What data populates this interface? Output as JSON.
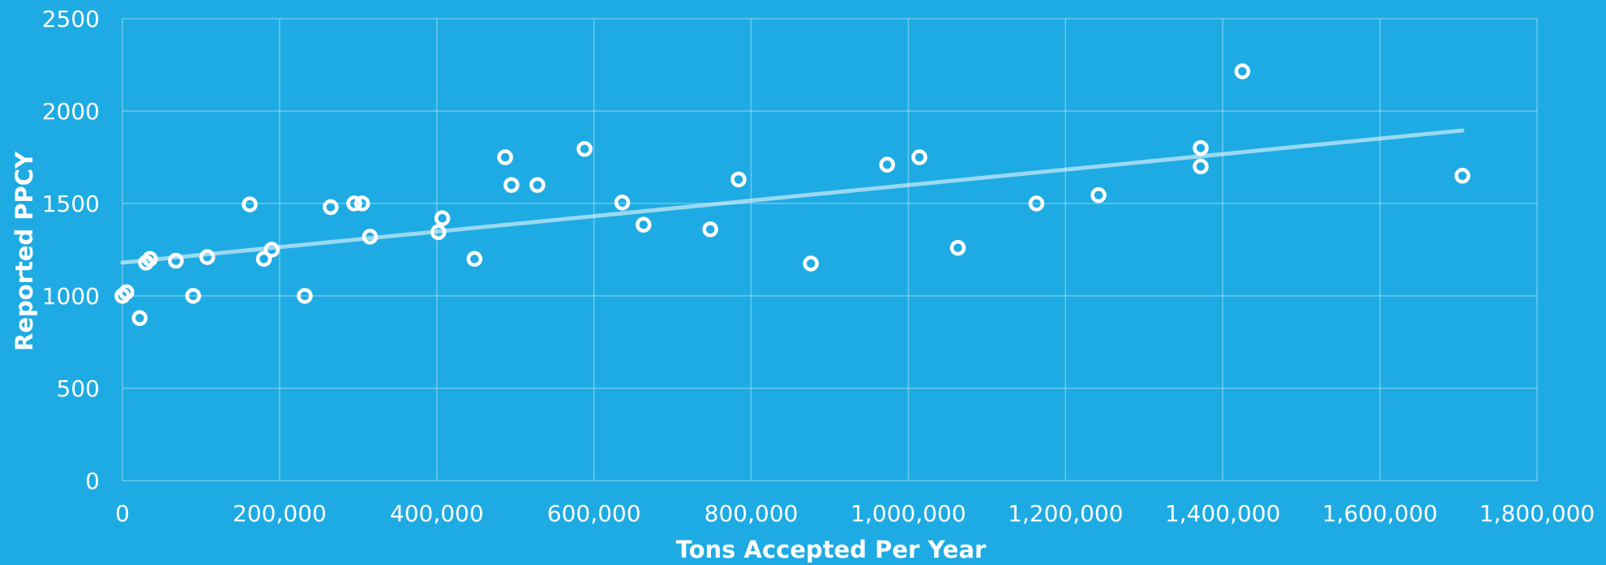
{
  "colors": {
    "background": "#1EABE3",
    "marker": "#ffffff",
    "gridline": "#ffffff",
    "trendline": "#8fd3f2"
  },
  "chart_data": {
    "type": "scatter",
    "title": "",
    "xlabel": "Tons Accepted Per Year",
    "ylabel": "Reported PPCY",
    "xlim": [
      0,
      1800000
    ],
    "ylim": [
      0,
      2500
    ],
    "x_ticks": [
      "0",
      "200,000",
      "400,000",
      "600,000",
      "800,000",
      "1,000,000",
      "1,200,000",
      "1,400,000",
      "1,600,000",
      "1,800,000"
    ],
    "y_ticks": [
      "0",
      "500",
      "1000",
      "1500",
      "2000",
      "2500"
    ],
    "grid": true,
    "legend": "none",
    "trendline": {
      "type": "linear",
      "x": [
        0,
        1705000
      ],
      "y": [
        1180,
        1895
      ]
    },
    "series": [
      {
        "marker": "hollow-circle",
        "points": [
          [
            0,
            1000
          ],
          [
            5000,
            1020
          ],
          [
            22000,
            880
          ],
          [
            30000,
            1180
          ],
          [
            35000,
            1200
          ],
          [
            68000,
            1190
          ],
          [
            90000,
            1000
          ],
          [
            108000,
            1210
          ],
          [
            162000,
            1495
          ],
          [
            180000,
            1200
          ],
          [
            190000,
            1250
          ],
          [
            232000,
            1000
          ],
          [
            265000,
            1480
          ],
          [
            295000,
            1500
          ],
          [
            305000,
            1500
          ],
          [
            315000,
            1320
          ],
          [
            402000,
            1345
          ],
          [
            407000,
            1420
          ],
          [
            448000,
            1200
          ],
          [
            487000,
            1750
          ],
          [
            495000,
            1600
          ],
          [
            528000,
            1600
          ],
          [
            588000,
            1795
          ],
          [
            636000,
            1505
          ],
          [
            663000,
            1385
          ],
          [
            748000,
            1360
          ],
          [
            784000,
            1630
          ],
          [
            876000,
            1175
          ],
          [
            973000,
            1710
          ],
          [
            1014000,
            1750
          ],
          [
            1063000,
            1260
          ],
          [
            1163000,
            1500
          ],
          [
            1242000,
            1545
          ],
          [
            1372000,
            1800
          ],
          [
            1372000,
            1700
          ],
          [
            1425000,
            2215
          ],
          [
            1705000,
            1650
          ]
        ]
      }
    ]
  }
}
